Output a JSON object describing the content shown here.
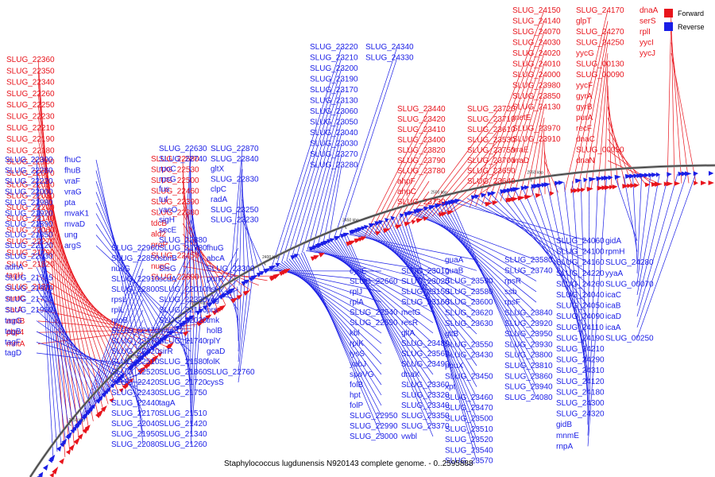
{
  "title": "Staphylococcus lugdunensis N920143 complete genome. - 0..2595888",
  "legend": [
    {
      "label": "Forward",
      "color": "#e8141c"
    },
    {
      "label": "Reverse",
      "color": "#1a1ee6"
    }
  ],
  "colors": {
    "forward": "#e8141c",
    "reverse": "#1a1ee6",
    "backbone": "#777777"
  },
  "scale_labels": [
    "2250 kbp",
    "2300 kbp",
    "2350 kbp",
    "2400 kbp",
    "2450 kbp",
    "2500 kbp",
    "2550 kbp"
  ],
  "forward_labels": [
    "SLUG_22360",
    "SLUG_22350",
    "SLUG_22340",
    "SLUG_22260",
    "SLUG_22250",
    "SLUG_22230",
    "SLUG_22210",
    "SLUG_22190",
    "SLUG_22180",
    "SLUG_22160",
    "SLUG_22070",
    "SLUG_22050",
    "SLUG_22030",
    "SLUG_22200",
    "SLUG_22140",
    "SLUG_22060",
    "SLUG_22270",
    "SLUG_21790",
    "SLUG_21820",
    "tagH",
    "SLUG_21810",
    "mntC",
    "sarA",
    "mntB",
    "pbp4",
    "mntA",
    "SLUG_22580",
    "SLUG_22530",
    "SLUG_22500",
    "SLUG_22460",
    "SLUG_22390",
    "SLUG_22380",
    "tdcB",
    "ald2",
    "proP",
    "SLUG_22450",
    "nupC",
    "SLUG_22890",
    "SLUG_23440",
    "SLUG_23420",
    "SLUG_23410",
    "SLUG_23400",
    "SLUG_23820",
    "SLUG_23790",
    "SLUG_23780",
    "ahpF",
    "ahpC",
    "SLUG_23730",
    "SLUG_23720",
    "SLUG_23710",
    "SLUG_23610",
    "SLUG_23530",
    "SLUG_23750",
    "SLUG_23700",
    "SLUG_23650",
    "SLUG_23640",
    "SLUG_24150",
    "SLUG_24140",
    "SLUG_24070",
    "SLUG_24030",
    "SLUG_24020",
    "SLUG_24010",
    "SLUG_24000",
    "SLUG_23980",
    "SLUG_23850",
    "SLUG_24130",
    "metE",
    "SLUG_23970",
    "SLUG_23910",
    "vraE",
    "vraD",
    "SLUG_24170",
    "glpT",
    "SLUG_24270",
    "SLUG_24250",
    "yycG",
    "SLUG_00130",
    "SLUG_00090",
    "yycF",
    "gyrA",
    "gyrB",
    "purA",
    "recF",
    "dnaC",
    "SLUG_00030",
    "dnaN",
    "dnaA",
    "serS",
    "rplI",
    "yycI",
    "yycJ"
  ],
  "reverse_labels": [
    "SLUG_22300",
    "SLUG_22280",
    "SLUG_22220",
    "SLUG_22000",
    "SLUG_21980",
    "SLUG_21920",
    "SLUG_21890",
    "SLUG_21850",
    "SLUG_22120",
    "SLUG_22030",
    "adhA",
    "SLUG_21745",
    "SLUG_21970",
    "SLUG_21730",
    "SLUG_21960",
    "tagG",
    "tagB",
    "tagF",
    "tagD",
    "fhuC",
    "fhuB",
    "vraF",
    "vraG",
    "pta",
    "mvaK1",
    "mvaD",
    "ung",
    "argS",
    "SLUG_22630",
    "SLUG_22740",
    "rpoC",
    "rpsG",
    "fus",
    "tuf",
    "yacO",
    "sigH",
    "secE",
    "SLUG_22880",
    "SLUG_22870",
    "SLUG_22840",
    "gltX",
    "SLUG_22830",
    "clpC",
    "radA",
    "SLUG_23250",
    "SLUG_23230",
    "SLUG_23220",
    "SLUG_23210",
    "SLUG_23200",
    "SLUG_23190",
    "SLUG_23170",
    "SLUG_23130",
    "SLUG_23060",
    "SLUG_23050",
    "SLUG_23040",
    "SLUG_23030",
    "SLUG_23270",
    "SLUG_23280",
    "SLUG_24340",
    "SLUG_24330",
    "SLUG_22960",
    "SLUG_22850",
    "nusG",
    "SLUG_22910",
    "SLUG_22800",
    "rpsL",
    "rplL",
    "rpoB",
    "SLUG_22470",
    "SLUG_22370",
    "SLUG_22320",
    "SLUG_22510",
    "SLUG_22520",
    "SLUG_22420",
    "SLUG_22430",
    "SLUG_22440",
    "SLUG_22170",
    "SLUG_22040",
    "SLUG_21950",
    "SLUG_22080",
    "SLUG_21780",
    "sbnB",
    "SlsG",
    "scdA",
    "SLUG_22010",
    "SLUG_22330",
    "SLUG_22150",
    "SLUG_22020",
    "mvaK2",
    "SLUG_21740",
    "sirR",
    "SLUG_21580",
    "SLUG_21860",
    "SLUG_21720",
    "SLUG_21750",
    "tagA",
    "SLUG_21510",
    "SLUG_21420",
    "SLUG_21340",
    "SLUG_21260",
    "fhuG",
    "abcA",
    "SLUG_23300",
    "purR",
    "ftsH",
    "veg",
    "prs",
    "tmk",
    "holB",
    "rplY",
    "gcaD",
    "folK",
    "SLUG_22760",
    "cysS",
    "cysE",
    "SLUG_22660",
    "rplJ",
    "rplA",
    "SLUG_22540",
    "SLUG_22550",
    "kbl",
    "rplK",
    "lysS",
    "yabJ",
    "spoVG",
    "folB",
    "hpt",
    "folP",
    "SLUG_22950",
    "SLUG_22990",
    "SLUG_23000",
    "SLUG_23010",
    "SLUG_23020",
    "SLUG_23150",
    "SLUG_23160",
    "metG",
    "recR",
    "gltA",
    "SLUG_23480",
    "SLUG_23560",
    "SLUG_23490",
    "dnaX",
    "SLUG_23360",
    "SLUG_23320",
    "SLUG_23340",
    "SLUG_23350",
    "SLUG_23370",
    "vwbl",
    "guaA",
    "guaB",
    "SLUG_23590",
    "SLUG_23580",
    "SLUG_23600",
    "SLUG_23620",
    "SLUG_23630",
    "gltB",
    "SLUG_23550",
    "SLUG_23430",
    "pbuX",
    "SLUG_23450",
    "xpt",
    "SLUG_23460",
    "SLUG_23470",
    "SLUG_23500",
    "SLUG_23510",
    "SLUG_23520",
    "SLUG_23540",
    "SLUG_23570",
    "SLUG_23580",
    "SLUG_23740",
    "rpsR",
    "ssb",
    "rpsF",
    "SLUG_23840",
    "SLUG_23920",
    "SLUG_23950",
    "SLUG_23930",
    "SLUG_23800",
    "SLUG_23810",
    "SLUG_23860",
    "SLUG_23940",
    "SLUG_24080",
    "SLUG_24060",
    "SLUG_24100",
    "SLUG_24160",
    "SLUG_24220",
    "SLUG_24260",
    "SLUG_24040",
    "SLUG_24050",
    "SLUG_24090",
    "SLUG_24110",
    "SLUG_24190",
    "SLUG_24210",
    "SLUG_24290",
    "SLUG_24310",
    "SLUG_24120",
    "SLUG_24180",
    "SLUG_24300",
    "SLUG_24320",
    "gidB",
    "mnmE",
    "rnpA",
    "gidA",
    "rpmH",
    "SLUG_24280",
    "yyaA",
    "SLUG_00070",
    "icaC",
    "icaB",
    "icaD",
    "icaA",
    "SLUG_00250"
  ]
}
